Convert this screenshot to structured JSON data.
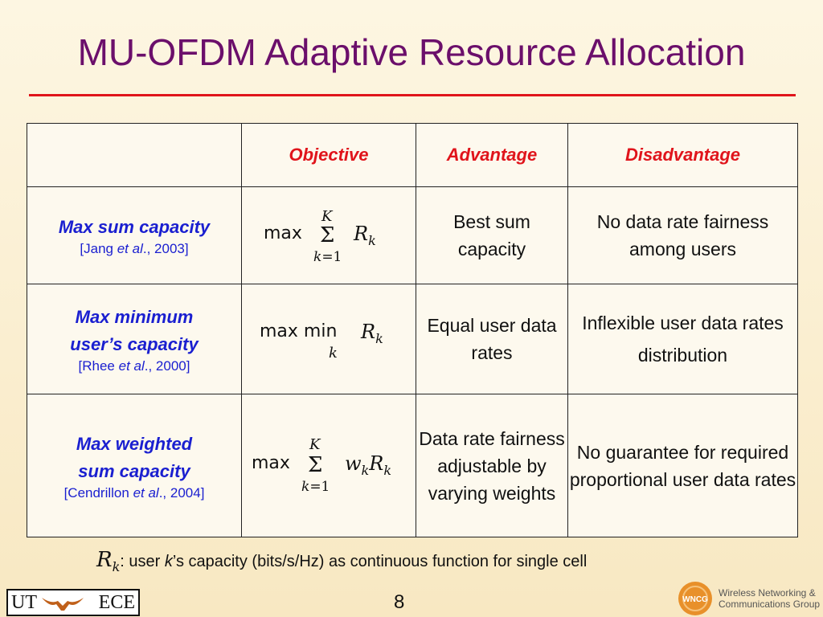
{
  "slide": {
    "title": "MU-OFDM Adaptive Resource Allocation",
    "page_number": "8"
  },
  "table": {
    "headers": [
      "",
      "Objective",
      "Advantage",
      "Disadvantage"
    ],
    "rows": [
      {
        "title_lines": [
          "Max sum capacity"
        ],
        "cite_prefix": "[Jang ",
        "cite_italic": "et al",
        "cite_suffix": "., 2003]",
        "advantage": "Best sum capacity",
        "disadvantage": "No data rate fairness among users",
        "formula": {
          "op": "max",
          "sum_upper": "K",
          "sum_lower": "k=1",
          "expr": "R_k"
        }
      },
      {
        "title_lines": [
          "Max minimum",
          "user’s capacity"
        ],
        "cite_prefix": "[Rhee ",
        "cite_italic": "et al",
        "cite_suffix": "., 2000]",
        "advantage": "Equal user data rates",
        "disadvantage": "Inflexible user data rates distribution",
        "formula": {
          "op": "max min",
          "sub": "k",
          "expr": "R_k"
        }
      },
      {
        "title_lines": [
          "Max weighted",
          "sum capacity"
        ],
        "cite_prefix": "[Cendrillon ",
        "cite_italic": "et al",
        "cite_suffix": "., 2004]",
        "advantage": "Data rate fairness adjustable by varying weights",
        "disadvantage": "No guarantee for required proportional user data rates",
        "formula": {
          "op": "max",
          "sum_upper": "K",
          "sum_lower": "k=1",
          "expr": "w_k R_k"
        }
      }
    ]
  },
  "footnote": {
    "symbol": "R",
    "symbol_sub": "k",
    "text_pre": ": user ",
    "text_italic": "k",
    "text_post": "’s capacity (bits/s/Hz) as continuous function for single cell"
  },
  "logos": {
    "left_text_1": "UT",
    "left_text_2": "ECE",
    "right_badge": "WNCG",
    "right_line_1": "Wireless Networking &",
    "right_line_2": "Communications Group"
  },
  "colors": {
    "title": "#6b0f6b",
    "rule": "#e0141b",
    "header_text": "#e0141b",
    "row_header_text": "#1a1fd0",
    "badge": "#e8902a"
  }
}
